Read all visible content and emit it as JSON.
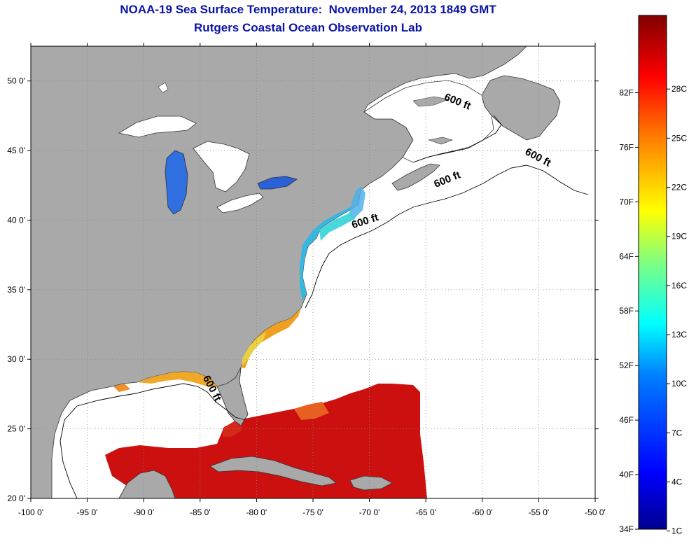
{
  "title": {
    "line1": "NOAA-19 Sea Surface Temperature:  November 24, 2013 1849 GMT",
    "line2": "Rutgers Coastal Ocean Observation Lab"
  },
  "map": {
    "lon_range": [
      -100,
      -50
    ],
    "lat_range": [
      20,
      52.5
    ],
    "grid": "dotted",
    "land_color": "#a9a9a9",
    "water_color": "#ffffff",
    "x_ticks": [
      {
        "value": -100,
        "label": "-100 0'"
      },
      {
        "value": -95,
        "label": "-95 0'"
      },
      {
        "value": -90,
        "label": "-90 0'"
      },
      {
        "value": -85,
        "label": "-85 0'"
      },
      {
        "value": -80,
        "label": "-80 0'"
      },
      {
        "value": -75,
        "label": "-75 0'"
      },
      {
        "value": -70,
        "label": "-70 0'"
      },
      {
        "value": -65,
        "label": "-65 0'"
      },
      {
        "value": -60,
        "label": "-60 0'"
      },
      {
        "value": -55,
        "label": "-55 0'"
      },
      {
        "value": -50,
        "label": "-50 0'"
      }
    ],
    "y_ticks": [
      {
        "value": 20,
        "label": "20 0'"
      },
      {
        "value": 25,
        "label": "25 0'"
      },
      {
        "value": 30,
        "label": "30 0'"
      },
      {
        "value": 35,
        "label": "35 0'"
      },
      {
        "value": 40,
        "label": "40 0'"
      },
      {
        "value": 45,
        "label": "45 0'"
      },
      {
        "value": 50,
        "label": "50 0'"
      }
    ],
    "contour_labels": [
      {
        "text": "600 ft",
        "lon": -62.3,
        "lat": 48.3,
        "angle": 22
      },
      {
        "text": "600 ft",
        "lon": -55.2,
        "lat": 44.3,
        "angle": 28
      },
      {
        "text": "600 ft",
        "lon": -63.0,
        "lat": 42.7,
        "angle": -22
      },
      {
        "text": "600 ft",
        "lon": -70.3,
        "lat": 39.7,
        "angle": -18
      },
      {
        "text": "600 ft",
        "lon": -84.2,
        "lat": 27.8,
        "angle": 62
      }
    ]
  },
  "colorbar": {
    "fahrenheit": [
      {
        "value": 82,
        "label": "82F"
      },
      {
        "value": 76,
        "label": "76F"
      },
      {
        "value": 70,
        "label": "70F"
      },
      {
        "value": 64,
        "label": "64F"
      },
      {
        "value": 58,
        "label": "58F"
      },
      {
        "value": 52,
        "label": "52F"
      },
      {
        "value": 46,
        "label": "46F"
      },
      {
        "value": 40,
        "label": "40F"
      },
      {
        "value": 34,
        "label": "34F"
      }
    ],
    "celsius": [
      {
        "value": 28,
        "label": "28C"
      },
      {
        "value": 25,
        "label": "25C"
      },
      {
        "value": 22,
        "label": "22C"
      },
      {
        "value": 19,
        "label": "19C"
      },
      {
        "value": 16,
        "label": "16C"
      },
      {
        "value": 13,
        "label": "13C"
      },
      {
        "value": 10,
        "label": "10C"
      },
      {
        "value": 7,
        "label": "7C"
      },
      {
        "value": 4,
        "label": "4C"
      },
      {
        "value": 1,
        "label": "1C"
      }
    ],
    "colors": [
      "#00008f",
      "#0000ff",
      "#0080ff",
      "#00ffff",
      "#80ff80",
      "#ffff00",
      "#ff8000",
      "#ff0000",
      "#800000"
    ]
  }
}
